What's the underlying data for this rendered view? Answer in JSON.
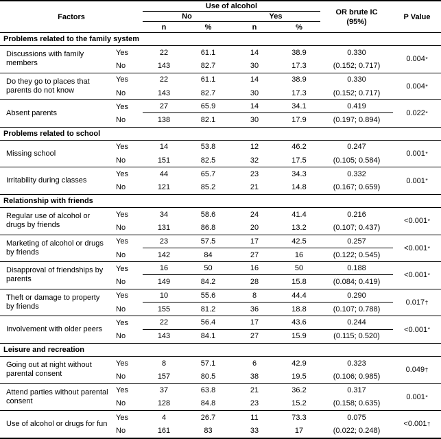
{
  "labels": {
    "yes": "Yes",
    "no": "No"
  },
  "header": {
    "factors": "Factors",
    "use_of_alcohol": "Use of alcohol",
    "no": "No",
    "yes": "Yes",
    "n": "n",
    "pct": "%",
    "or_line1": "OR brute IC",
    "or_line2": "(95%)",
    "p_value": "P Value"
  },
  "sections": [
    {
      "title": "Problems related to the family system",
      "groups": [
        {
          "factor": "Discussions with family members",
          "row_yes": {
            "n_no": "22",
            "pct_no": "61.1",
            "n_yes": "14",
            "pct_yes": "38.9",
            "or": "0.330"
          },
          "row_no": {
            "n_no": "143",
            "pct_no": "82.7",
            "n_yes": "30",
            "pct_yes": "17.3",
            "ci": "(0.152; 0.717)"
          },
          "p": "0.004",
          "p_mark": "*",
          "split": false
        },
        {
          "factor": "Do they go to places that parents do not know",
          "row_yes": {
            "n_no": "22",
            "pct_no": "61.1",
            "n_yes": "14",
            "pct_yes": "38.9",
            "or": "0.330"
          },
          "row_no": {
            "n_no": "143",
            "pct_no": "82.7",
            "n_yes": "30",
            "pct_yes": "17.3",
            "ci": "(0.152; 0.717)"
          },
          "p": "0.004",
          "p_mark": "*",
          "split": false
        },
        {
          "factor": "Absent parents",
          "row_yes": {
            "n_no": "27",
            "pct_no": "65.9",
            "n_yes": "14",
            "pct_yes": "34.1",
            "or": "0.419"
          },
          "row_no": {
            "n_no": "138",
            "pct_no": "82.1",
            "n_yes": "30",
            "pct_yes": "17.9",
            "ci": "(0.197; 0.894)"
          },
          "p": "0.022",
          "p_mark": "*",
          "split": true
        }
      ]
    },
    {
      "title": "Problems related to school",
      "groups": [
        {
          "factor": "Missing school",
          "row_yes": {
            "n_no": "14",
            "pct_no": "53.8",
            "n_yes": "12",
            "pct_yes": "46.2",
            "or": "0.247"
          },
          "row_no": {
            "n_no": "151",
            "pct_no": "82.5",
            "n_yes": "32",
            "pct_yes": "17.5",
            "ci": "(0.105; 0.584)"
          },
          "p": "0.001",
          "p_mark": "*",
          "split": false
        },
        {
          "factor": "Irritability during classes",
          "row_yes": {
            "n_no": "44",
            "pct_no": "65.7",
            "n_yes": "23",
            "pct_yes": "34.3",
            "or": "0.332"
          },
          "row_no": {
            "n_no": "121",
            "pct_no": "85.2",
            "n_yes": "21",
            "pct_yes": "14.8",
            "ci": "(0.167; 0.659)"
          },
          "p": "0.001",
          "p_mark": "*",
          "split": false
        }
      ]
    },
    {
      "title": "Relationship with friends",
      "groups": [
        {
          "factor": "Regular use of alcohol or drugs by friends",
          "row_yes": {
            "n_no": "34",
            "pct_no": "58.6",
            "n_yes": "24",
            "pct_yes": "41.4",
            "or": "0.216"
          },
          "row_no": {
            "n_no": "131",
            "pct_no": "86.8",
            "n_yes": "20",
            "pct_yes": "13.2",
            "ci": "(0.107; 0.437)"
          },
          "p": "<0.001",
          "p_mark": "*",
          "split": false
        },
        {
          "factor": "Marketing of alcohol or drugs by friends",
          "row_yes": {
            "n_no": "23",
            "pct_no": "57.5",
            "n_yes": "17",
            "pct_yes": "42.5",
            "or": "0.257"
          },
          "row_no": {
            "n_no": "142",
            "pct_no": "84",
            "n_yes": "27",
            "pct_yes": "16",
            "ci": "(0.122; 0.545)"
          },
          "p": "<0.001",
          "p_mark": "*",
          "split": true
        },
        {
          "factor": "Disapproval of friendships by parents",
          "row_yes": {
            "n_no": "16",
            "pct_no": "50",
            "n_yes": "16",
            "pct_yes": "50",
            "or": "0.188"
          },
          "row_no": {
            "n_no": "149",
            "pct_no": "84.2",
            "n_yes": "28",
            "pct_yes": "15.8",
            "ci": "(0.084; 0.419)"
          },
          "p": "<0.001",
          "p_mark": "*",
          "split": true
        },
        {
          "factor": "Theft or damage to property by friends",
          "row_yes": {
            "n_no": "10",
            "pct_no": "55.6",
            "n_yes": "8",
            "pct_yes": "44.4",
            "or": "0.290"
          },
          "row_no": {
            "n_no": "155",
            "pct_no": "81.2",
            "n_yes": "36",
            "pct_yes": "18.8",
            "ci": "(0.107; 0.788)"
          },
          "p": "0.017",
          "p_mark": "†",
          "split": true
        },
        {
          "factor": "Involvement with older peers",
          "row_yes": {
            "n_no": "22",
            "pct_no": "56.4",
            "n_yes": "17",
            "pct_yes": "43.6",
            "or": "0.244"
          },
          "row_no": {
            "n_no": "143",
            "pct_no": "84.1",
            "n_yes": "27",
            "pct_yes": "15.9",
            "ci": "(0.115; 0.520)"
          },
          "p": "<0.001",
          "p_mark": "*",
          "split": true
        }
      ]
    },
    {
      "title": "Leisure and recreation",
      "groups": [
        {
          "factor": "Going out at night without parental consent",
          "row_yes": {
            "n_no": "8",
            "pct_no": "57.1",
            "n_yes": "6",
            "pct_yes": "42.9",
            "or": "0.323"
          },
          "row_no": {
            "n_no": "157",
            "pct_no": "80.5",
            "n_yes": "38",
            "pct_yes": "19.5",
            "ci": "(0.106; 0.985)"
          },
          "p": "0.049",
          "p_mark": "†",
          "split": false
        },
        {
          "factor": "Attend parties without parental consent",
          "row_yes": {
            "n_no": "37",
            "pct_no": "63.8",
            "n_yes": "21",
            "pct_yes": "36.2",
            "or": "0.317"
          },
          "row_no": {
            "n_no": "128",
            "pct_no": "84.8",
            "n_yes": "23",
            "pct_yes": "15.2",
            "ci": "(0.158; 0.635)"
          },
          "p": "0.001",
          "p_mark": "*",
          "split": false
        },
        {
          "factor": "Use of alcohol or drugs for fun",
          "row_yes": {
            "n_no": "4",
            "pct_no": "26.7",
            "n_yes": "11",
            "pct_yes": "73.3",
            "or": "0.075"
          },
          "row_no": {
            "n_no": "161",
            "pct_no": "83",
            "n_yes": "33",
            "pct_yes": "17",
            "ci": "(0.022; 0.248)"
          },
          "p": "<0.001",
          "p_mark": "†",
          "split": false
        }
      ]
    }
  ]
}
